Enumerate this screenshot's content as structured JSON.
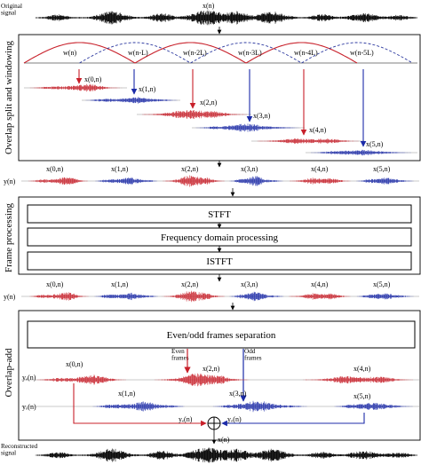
{
  "colors": {
    "red": "#c8202a",
    "blue": "#1c2ba8",
    "black": "#000000",
    "odd_window": "#2d3aa0"
  },
  "signals": {
    "original": {
      "label": "Original\nsignal",
      "name": "x(n)"
    },
    "reconstructed": {
      "label": "Reconstructed\nsignal",
      "name": "x(n)"
    }
  },
  "sections": {
    "overlap_split": "Overlap split and windowing",
    "frame_processing": "Frame processing",
    "overlap_add": "Overlap-add"
  },
  "windows": [
    "w(n)",
    "w(n-L)",
    "w(n-2L)",
    "w(n-3L)",
    "w(n-4L)",
    "w(n-5L)"
  ],
  "frames": [
    "x(0,n)",
    "x(1,n)",
    "x(2,n)",
    "x(3,n)",
    "x(4,n)",
    "x(5,n)"
  ],
  "y_label": "y(n)",
  "processing": {
    "stft": "STFT",
    "fdp": "Frequency domain processing",
    "istft": "ISTFT"
  },
  "overlap_add": {
    "separation": "Even/odd frames separation",
    "even_frames": "Even\nframes",
    "odd_frames": "Odd\nframes",
    "ye": "yₑ(n)",
    "yo": "yₒ(n)",
    "ye_sum": "yₑ(n)",
    "yo_sum": "yₒ(n)",
    "sum_symbol": "⊕"
  }
}
